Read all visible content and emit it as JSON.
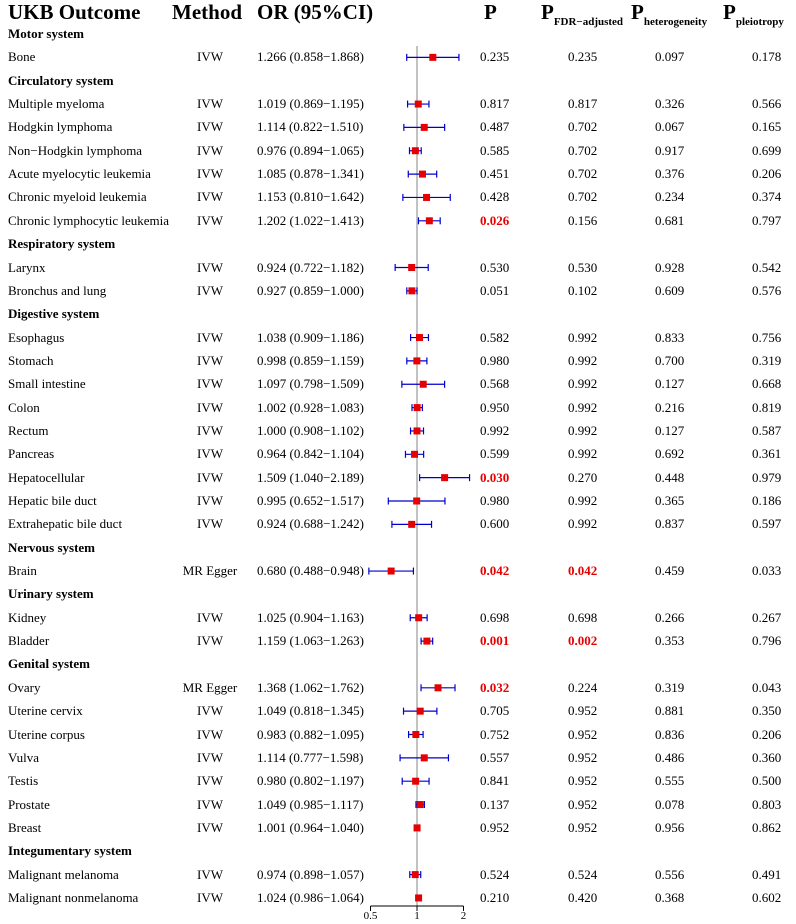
{
  "headers": {
    "outcome": "UKB Outcome",
    "method": "Method",
    "or": "OR (95%CI)",
    "p": "P",
    "p_fdr": "FDR−adjusted",
    "p_het": "heterogeneity",
    "p_pleio": "pleiotropy"
  },
  "colors": {
    "marker": "#e60000",
    "ci": "#0000cc",
    "significant": "#e60000",
    "refline": "#999999"
  },
  "chart_data": {
    "type": "forest",
    "title": "UKB Outcome forest plot",
    "xlabel": "OR (95%CI)",
    "xlim": [
      0.5,
      2
    ],
    "xticks": [
      0.5,
      1,
      2
    ],
    "xtick_labels": [
      "0.5",
      "1",
      "2"
    ],
    "reference": 1,
    "groups": [
      {
        "name": "Motor system",
        "rows": [
          {
            "outcome": "Bone",
            "method": "IVW",
            "or_text": "1.266 (0.858−1.868)",
            "or": 1.266,
            "lo": 0.858,
            "hi": 1.868,
            "p": "0.235",
            "p_fdr": "0.235",
            "p_het": "0.097",
            "p_pleio": "0.178",
            "p_sig": false,
            "fdr_sig": false
          }
        ]
      },
      {
        "name": "Circulatory system",
        "rows": [
          {
            "outcome": "Multiple myeloma",
            "method": "IVW",
            "or_text": "1.019 (0.869−1.195)",
            "or": 1.019,
            "lo": 0.869,
            "hi": 1.195,
            "p": "0.817",
            "p_fdr": "0.817",
            "p_het": "0.326",
            "p_pleio": "0.566",
            "p_sig": false,
            "fdr_sig": false
          },
          {
            "outcome": "Hodgkin lymphoma",
            "method": "IVW",
            "or_text": "1.114 (0.822−1.510)",
            "or": 1.114,
            "lo": 0.822,
            "hi": 1.51,
            "p": "0.487",
            "p_fdr": "0.702",
            "p_het": "0.067",
            "p_pleio": "0.165",
            "p_sig": false,
            "fdr_sig": false
          },
          {
            "outcome": "Non−Hodgkin lymphoma",
            "method": "IVW",
            "or_text": "0.976 (0.894−1.065)",
            "or": 0.976,
            "lo": 0.894,
            "hi": 1.065,
            "p": "0.585",
            "p_fdr": "0.702",
            "p_het": "0.917",
            "p_pleio": "0.699",
            "p_sig": false,
            "fdr_sig": false
          },
          {
            "outcome": "Acute myelocytic leukemia",
            "method": "IVW",
            "or_text": "1.085 (0.878−1.341)",
            "or": 1.085,
            "lo": 0.878,
            "hi": 1.341,
            "p": "0.451",
            "p_fdr": "0.702",
            "p_het": "0.376",
            "p_pleio": "0.206",
            "p_sig": false,
            "fdr_sig": false
          },
          {
            "outcome": "Chronic myeloid leukemia",
            "method": "IVW",
            "or_text": "1.153 (0.810−1.642)",
            "or": 1.153,
            "lo": 0.81,
            "hi": 1.642,
            "p": "0.428",
            "p_fdr": "0.702",
            "p_het": "0.234",
            "p_pleio": "0.374",
            "p_sig": false,
            "fdr_sig": false
          },
          {
            "outcome": "Chronic lymphocytic leukemia",
            "method": "IVW",
            "or_text": "1.202 (1.022−1.413)",
            "or": 1.202,
            "lo": 1.022,
            "hi": 1.413,
            "p": "0.026",
            "p_fdr": "0.156",
            "p_het": "0.681",
            "p_pleio": "0.797",
            "p_sig": true,
            "fdr_sig": false
          }
        ]
      },
      {
        "name": "Respiratory system",
        "rows": [
          {
            "outcome": "Larynx",
            "method": "IVW",
            "or_text": "0.924 (0.722−1.182)",
            "or": 0.924,
            "lo": 0.722,
            "hi": 1.182,
            "p": "0.530",
            "p_fdr": "0.530",
            "p_het": "0.928",
            "p_pleio": "0.542",
            "p_sig": false,
            "fdr_sig": false
          },
          {
            "outcome": "Bronchus and lung",
            "method": "IVW",
            "or_text": "0.927 (0.859−1.000)",
            "or": 0.927,
            "lo": 0.859,
            "hi": 1.0,
            "p": "0.051",
            "p_fdr": "0.102",
            "p_het": "0.609",
            "p_pleio": "0.576",
            "p_sig": false,
            "fdr_sig": false
          }
        ]
      },
      {
        "name": "Digestive system",
        "rows": [
          {
            "outcome": "Esophagus",
            "method": "IVW",
            "or_text": "1.038 (0.909−1.186)",
            "or": 1.038,
            "lo": 0.909,
            "hi": 1.186,
            "p": "0.582",
            "p_fdr": "0.992",
            "p_het": "0.833",
            "p_pleio": "0.756",
            "p_sig": false,
            "fdr_sig": false
          },
          {
            "outcome": "Stomach",
            "method": "IVW",
            "or_text": "0.998 (0.859−1.159)",
            "or": 0.998,
            "lo": 0.859,
            "hi": 1.159,
            "p": "0.980",
            "p_fdr": "0.992",
            "p_het": "0.700",
            "p_pleio": "0.319",
            "p_sig": false,
            "fdr_sig": false
          },
          {
            "outcome": "Small intestine",
            "method": "IVW",
            "or_text": "1.097 (0.798−1.509)",
            "or": 1.097,
            "lo": 0.798,
            "hi": 1.509,
            "p": "0.568",
            "p_fdr": "0.992",
            "p_het": "0.127",
            "p_pleio": "0.668",
            "p_sig": false,
            "fdr_sig": false
          },
          {
            "outcome": "Colon",
            "method": "IVW",
            "or_text": "1.002 (0.928−1.083)",
            "or": 1.002,
            "lo": 0.928,
            "hi": 1.083,
            "p": "0.950",
            "p_fdr": "0.992",
            "p_het": "0.216",
            "p_pleio": "0.819",
            "p_sig": false,
            "fdr_sig": false
          },
          {
            "outcome": "Rectum",
            "method": "IVW",
            "or_text": "1.000 (0.908−1.102)",
            "or": 1.0,
            "lo": 0.908,
            "hi": 1.102,
            "p": "0.992",
            "p_fdr": "0.992",
            "p_het": "0.127",
            "p_pleio": "0.587",
            "p_sig": false,
            "fdr_sig": false
          },
          {
            "outcome": "Pancreas",
            "method": "IVW",
            "or_text": "0.964 (0.842−1.104)",
            "or": 0.964,
            "lo": 0.842,
            "hi": 1.104,
            "p": "0.599",
            "p_fdr": "0.992",
            "p_het": "0.692",
            "p_pleio": "0.361",
            "p_sig": false,
            "fdr_sig": false
          },
          {
            "outcome": "Hepatocellular",
            "method": "IVW",
            "or_text": "1.509 (1.040−2.189)",
            "or": 1.509,
            "lo": 1.04,
            "hi": 2.189,
            "p": "0.030",
            "p_fdr": "0.270",
            "p_het": "0.448",
            "p_pleio": "0.979",
            "p_sig": true,
            "fdr_sig": false
          },
          {
            "outcome": "Hepatic bile duct",
            "method": "IVW",
            "or_text": "0.995 (0.652−1.517)",
            "or": 0.995,
            "lo": 0.652,
            "hi": 1.517,
            "p": "0.980",
            "p_fdr": "0.992",
            "p_het": "0.365",
            "p_pleio": "0.186",
            "p_sig": false,
            "fdr_sig": false
          },
          {
            "outcome": "Extrahepatic bile duct",
            "method": "IVW",
            "or_text": "0.924 (0.688−1.242)",
            "or": 0.924,
            "lo": 0.688,
            "hi": 1.242,
            "p": "0.600",
            "p_fdr": "0.992",
            "p_het": "0.837",
            "p_pleio": "0.597",
            "p_sig": false,
            "fdr_sig": false
          }
        ]
      },
      {
        "name": "Nervous system",
        "rows": [
          {
            "outcome": "Brain",
            "method": "MR Egger",
            "or_text": "0.680 (0.488−0.948)",
            "or": 0.68,
            "lo": 0.488,
            "hi": 0.948,
            "p": "0.042",
            "p_fdr": "0.042",
            "p_het": "0.459",
            "p_pleio": "0.033",
            "p_sig": true,
            "fdr_sig": true
          }
        ]
      },
      {
        "name": "Urinary system",
        "rows": [
          {
            "outcome": "Kidney",
            "method": "IVW",
            "or_text": "1.025 (0.904−1.163)",
            "or": 1.025,
            "lo": 0.904,
            "hi": 1.163,
            "p": "0.698",
            "p_fdr": "0.698",
            "p_het": "0.266",
            "p_pleio": "0.267",
            "p_sig": false,
            "fdr_sig": false
          },
          {
            "outcome": "Bladder",
            "method": "IVW",
            "or_text": "1.159 (1.063−1.263)",
            "or": 1.159,
            "lo": 1.063,
            "hi": 1.263,
            "p": "0.001",
            "p_fdr": "0.002",
            "p_het": "0.353",
            "p_pleio": "0.796",
            "p_sig": true,
            "fdr_sig": true
          }
        ]
      },
      {
        "name": "Genital system",
        "rows": [
          {
            "outcome": "Ovary",
            "method": "MR Egger",
            "or_text": "1.368 (1.062−1.762)",
            "or": 1.368,
            "lo": 1.062,
            "hi": 1.762,
            "p": "0.032",
            "p_fdr": "0.224",
            "p_het": "0.319",
            "p_pleio": "0.043",
            "p_sig": true,
            "fdr_sig": false
          },
          {
            "outcome": "Uterine cervix",
            "method": "IVW",
            "or_text": "1.049 (0.818−1.345)",
            "or": 1.049,
            "lo": 0.818,
            "hi": 1.345,
            "p": "0.705",
            "p_fdr": "0.952",
            "p_het": "0.881",
            "p_pleio": "0.350",
            "p_sig": false,
            "fdr_sig": false
          },
          {
            "outcome": "Uterine corpus",
            "method": "IVW",
            "or_text": "0.983 (0.882−1.095)",
            "or": 0.983,
            "lo": 0.882,
            "hi": 1.095,
            "p": "0.752",
            "p_fdr": "0.952",
            "p_het": "0.836",
            "p_pleio": "0.206",
            "p_sig": false,
            "fdr_sig": false
          },
          {
            "outcome": "Vulva",
            "method": "IVW",
            "or_text": "1.114 (0.777−1.598)",
            "or": 1.114,
            "lo": 0.777,
            "hi": 1.598,
            "p": "0.557",
            "p_fdr": "0.952",
            "p_het": "0.486",
            "p_pleio": "0.360",
            "p_sig": false,
            "fdr_sig": false
          },
          {
            "outcome": "Testis",
            "method": "IVW",
            "or_text": "0.980 (0.802−1.197)",
            "or": 0.98,
            "lo": 0.802,
            "hi": 1.197,
            "p": "0.841",
            "p_fdr": "0.952",
            "p_het": "0.555",
            "p_pleio": "0.500",
            "p_sig": false,
            "fdr_sig": false
          },
          {
            "outcome": "Prostate",
            "method": "IVW",
            "or_text": "1.049 (0.985−1.117)",
            "or": 1.049,
            "lo": 0.985,
            "hi": 1.117,
            "p": "0.137",
            "p_fdr": "0.952",
            "p_het": "0.078",
            "p_pleio": "0.803",
            "p_sig": false,
            "fdr_sig": false
          },
          {
            "outcome": "Breast",
            "method": "IVW",
            "or_text": "1.001 (0.964−1.040)",
            "or": 1.001,
            "lo": 0.964,
            "hi": 1.04,
            "p": "0.952",
            "p_fdr": "0.952",
            "p_het": "0.956",
            "p_pleio": "0.862",
            "p_sig": false,
            "fdr_sig": false
          }
        ]
      },
      {
        "name": "Integumentary system",
        "rows": [
          {
            "outcome": "Malignant melanoma",
            "method": "IVW",
            "or_text": "0.974 (0.898−1.057)",
            "or": 0.974,
            "lo": 0.898,
            "hi": 1.057,
            "p": "0.524",
            "p_fdr": "0.524",
            "p_het": "0.556",
            "p_pleio": "0.491",
            "p_sig": false,
            "fdr_sig": false
          },
          {
            "outcome": "Malignant nonmelanoma",
            "method": "IVW",
            "or_text": "1.024 (0.986−1.064)",
            "or": 1.024,
            "lo": 0.986,
            "hi": 1.064,
            "p": "0.210",
            "p_fdr": "0.420",
            "p_het": "0.368",
            "p_pleio": "0.602",
            "p_sig": false,
            "fdr_sig": false
          }
        ]
      }
    ]
  }
}
